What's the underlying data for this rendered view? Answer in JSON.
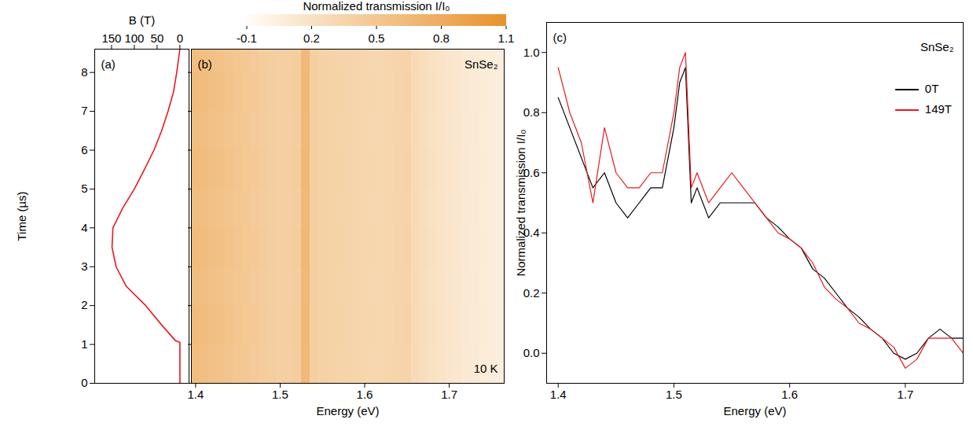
{
  "chart_data": [
    {
      "type": "line",
      "annotations": [
        "(a)"
      ],
      "xlabel": "B (T)",
      "ylabel": "Time (µs)",
      "x": [
        0,
        0,
        10,
        40,
        75,
        118,
        140,
        149,
        147,
        126,
        100,
        78,
        57,
        40,
        26,
        14,
        7,
        0
      ],
      "y": [
        0,
        1.05,
        1.1,
        1.5,
        2,
        2.5,
        3,
        3.5,
        4,
        4.5,
        5,
        5.5,
        6,
        6.5,
        7,
        7.5,
        8,
        8.6
      ],
      "color": "#e8191f",
      "xlim": [
        187,
        -20
      ],
      "xticks": [
        150,
        100,
        50,
        0
      ],
      "ylim": [
        0,
        8.6
      ],
      "yticks": [
        0,
        1,
        2,
        3,
        4,
        5,
        6,
        7,
        8
      ]
    },
    {
      "type": "heatmap",
      "annotations": [
        "(b)",
        "SnSe₂",
        "10 K"
      ],
      "xlabel": "Energy (eV)",
      "xlim": [
        1.395,
        1.765
      ],
      "xticks": [
        1.4,
        1.5,
        1.6,
        1.7
      ],
      "ylim": [
        0,
        8.6
      ],
      "yticks": [
        0,
        1,
        2,
        3,
        4,
        5,
        6,
        7,
        8
      ],
      "tick_labels": "x",
      "xbins": [
        1.395,
        1.405,
        1.415,
        1.425,
        1.435,
        1.445,
        1.455,
        1.465,
        1.475,
        1.485,
        1.495,
        1.505,
        1.515,
        1.525,
        1.535,
        1.545,
        1.555,
        1.565,
        1.575,
        1.585,
        1.595,
        1.605,
        1.615,
        1.625,
        1.635,
        1.645,
        1.655,
        1.665,
        1.675,
        1.685,
        1.695,
        1.705,
        1.715,
        1.725,
        1.735,
        1.745,
        1.755,
        1.765
      ],
      "ybins": [
        0,
        1,
        2,
        3,
        4,
        5,
        6,
        7,
        8,
        8.6
      ],
      "z": [
        [
          0.6,
          0.58,
          0.56,
          0.55,
          0.52,
          0.5,
          0.48,
          0.46,
          0.44,
          0.42,
          0.4,
          0.4,
          0.42,
          0.65,
          0.4,
          0.38,
          0.37,
          0.36,
          0.35,
          0.34,
          0.33,
          0.32,
          0.32,
          0.33,
          0.34,
          0.36,
          0.28,
          0.24,
          0.2,
          0.18,
          0.15,
          0.13,
          0.11,
          0.1,
          0.08,
          0.07,
          0.06
        ],
        [
          0.63,
          0.61,
          0.58,
          0.57,
          0.54,
          0.51,
          0.49,
          0.47,
          0.45,
          0.42,
          0.41,
          0.4,
          0.43,
          0.66,
          0.41,
          0.38,
          0.37,
          0.37,
          0.35,
          0.34,
          0.33,
          0.33,
          0.32,
          0.33,
          0.35,
          0.37,
          0.28,
          0.25,
          0.21,
          0.18,
          0.16,
          0.13,
          0.12,
          0.1,
          0.09,
          0.07,
          0.06
        ],
        [
          0.6,
          0.58,
          0.56,
          0.55,
          0.52,
          0.5,
          0.48,
          0.46,
          0.44,
          0.42,
          0.4,
          0.4,
          0.42,
          0.65,
          0.4,
          0.38,
          0.37,
          0.36,
          0.35,
          0.34,
          0.33,
          0.32,
          0.32,
          0.33,
          0.34,
          0.36,
          0.28,
          0.24,
          0.2,
          0.18,
          0.15,
          0.13,
          0.11,
          0.1,
          0.08,
          0.07,
          0.06
        ],
        [
          0.63,
          0.61,
          0.58,
          0.57,
          0.54,
          0.51,
          0.49,
          0.47,
          0.45,
          0.42,
          0.41,
          0.4,
          0.43,
          0.66,
          0.41,
          0.38,
          0.37,
          0.37,
          0.35,
          0.34,
          0.33,
          0.33,
          0.32,
          0.33,
          0.35,
          0.37,
          0.28,
          0.25,
          0.21,
          0.18,
          0.16,
          0.13,
          0.12,
          0.1,
          0.09,
          0.07,
          0.06
        ],
        [
          0.6,
          0.58,
          0.56,
          0.55,
          0.52,
          0.5,
          0.48,
          0.46,
          0.44,
          0.42,
          0.4,
          0.4,
          0.42,
          0.65,
          0.4,
          0.38,
          0.37,
          0.36,
          0.35,
          0.34,
          0.33,
          0.32,
          0.32,
          0.33,
          0.34,
          0.36,
          0.28,
          0.24,
          0.2,
          0.18,
          0.15,
          0.13,
          0.11,
          0.1,
          0.08,
          0.07,
          0.06
        ],
        [
          0.63,
          0.61,
          0.58,
          0.57,
          0.54,
          0.51,
          0.49,
          0.47,
          0.45,
          0.42,
          0.41,
          0.4,
          0.43,
          0.66,
          0.41,
          0.38,
          0.37,
          0.37,
          0.35,
          0.34,
          0.33,
          0.33,
          0.32,
          0.33,
          0.35,
          0.37,
          0.28,
          0.25,
          0.21,
          0.18,
          0.16,
          0.13,
          0.12,
          0.1,
          0.09,
          0.07,
          0.06
        ],
        [
          0.6,
          0.58,
          0.56,
          0.55,
          0.52,
          0.5,
          0.48,
          0.46,
          0.44,
          0.42,
          0.4,
          0.4,
          0.42,
          0.65,
          0.4,
          0.38,
          0.37,
          0.36,
          0.35,
          0.34,
          0.33,
          0.32,
          0.32,
          0.33,
          0.34,
          0.36,
          0.28,
          0.24,
          0.2,
          0.18,
          0.15,
          0.13,
          0.11,
          0.1,
          0.08,
          0.07,
          0.06
        ],
        [
          0.63,
          0.61,
          0.58,
          0.57,
          0.54,
          0.51,
          0.49,
          0.47,
          0.45,
          0.42,
          0.41,
          0.4,
          0.43,
          0.66,
          0.41,
          0.38,
          0.37,
          0.37,
          0.35,
          0.34,
          0.33,
          0.33,
          0.32,
          0.33,
          0.35,
          0.37,
          0.28,
          0.25,
          0.21,
          0.18,
          0.16,
          0.13,
          0.12,
          0.1,
          0.09,
          0.07,
          0.06
        ],
        [
          0.6,
          0.58,
          0.56,
          0.55,
          0.52,
          0.5,
          0.48,
          0.46,
          0.44,
          0.42,
          0.4,
          0.4,
          0.42,
          0.65,
          0.4,
          0.38,
          0.37,
          0.36,
          0.35,
          0.34,
          0.33,
          0.32,
          0.32,
          0.33,
          0.34,
          0.36,
          0.28,
          0.24,
          0.2,
          0.18,
          0.15,
          0.13,
          0.11,
          0.1,
          0.08,
          0.07,
          0.06
        ]
      ],
      "colorbar": {
        "label": "Normalized transmission I/I₀",
        "range": [
          -0.1,
          1.1
        ],
        "ticks": [
          -0.1,
          0.2,
          0.5,
          0.8,
          1.1
        ],
        "colors": [
          "#fffcf7",
          "#e8912b"
        ]
      }
    },
    {
      "type": "line",
      "annotations": [
        "(c)",
        "SnSe₂"
      ],
      "xlabel": "Energy (eV)",
      "ylabel": "Normalized transmission I/I₀",
      "x": [
        1.4,
        1.41,
        1.42,
        1.43,
        1.44,
        1.45,
        1.46,
        1.47,
        1.48,
        1.49,
        1.5,
        1.505,
        1.51,
        1.515,
        1.52,
        1.53,
        1.54,
        1.55,
        1.56,
        1.57,
        1.58,
        1.59,
        1.6,
        1.61,
        1.62,
        1.63,
        1.64,
        1.65,
        1.66,
        1.67,
        1.68,
        1.69,
        1.7,
        1.71,
        1.72,
        1.73,
        1.74,
        1.75
      ],
      "series": [
        {
          "name": "0T",
          "color": "#000000",
          "values": [
            0.85,
            0.75,
            0.65,
            0.55,
            0.6,
            0.5,
            0.45,
            0.5,
            0.55,
            0.55,
            0.75,
            0.9,
            0.95,
            0.5,
            0.55,
            0.45,
            0.5,
            0.5,
            0.5,
            0.5,
            0.45,
            0.42,
            0.38,
            0.35,
            0.28,
            0.25,
            0.2,
            0.15,
            0.12,
            0.08,
            0.05,
            0.0,
            -0.02,
            0.0,
            0.05,
            0.08,
            0.05,
            0.05
          ]
        },
        {
          "name": "149T",
          "color": "#e8191f",
          "values": [
            0.95,
            0.8,
            0.7,
            0.5,
            0.75,
            0.6,
            0.55,
            0.55,
            0.6,
            0.6,
            0.8,
            0.95,
            1.0,
            0.55,
            0.6,
            0.5,
            0.55,
            0.6,
            0.55,
            0.5,
            0.45,
            0.4,
            0.38,
            0.35,
            0.3,
            0.22,
            0.18,
            0.15,
            0.1,
            0.08,
            0.05,
            0.02,
            -0.05,
            -0.02,
            0.05,
            0.05,
            0.05,
            0.0
          ]
        }
      ],
      "xlim": [
        1.39,
        1.75
      ],
      "xticks": [
        1.4,
        1.5,
        1.6,
        1.7
      ],
      "ylim": [
        -0.1,
        1.1
      ],
      "yticks": [
        {
          "value": 0,
          "label": "0.0"
        },
        {
          "value": 0.2,
          "label": "0.2"
        },
        {
          "value": 0.4,
          "label": "0.4"
        },
        {
          "value": 0.6,
          "label": "0.6"
        },
        {
          "value": 0.8,
          "label": "0.8"
        },
        {
          "value": 1,
          "label": "1.0"
        }
      ],
      "legend": "upper right"
    }
  ]
}
